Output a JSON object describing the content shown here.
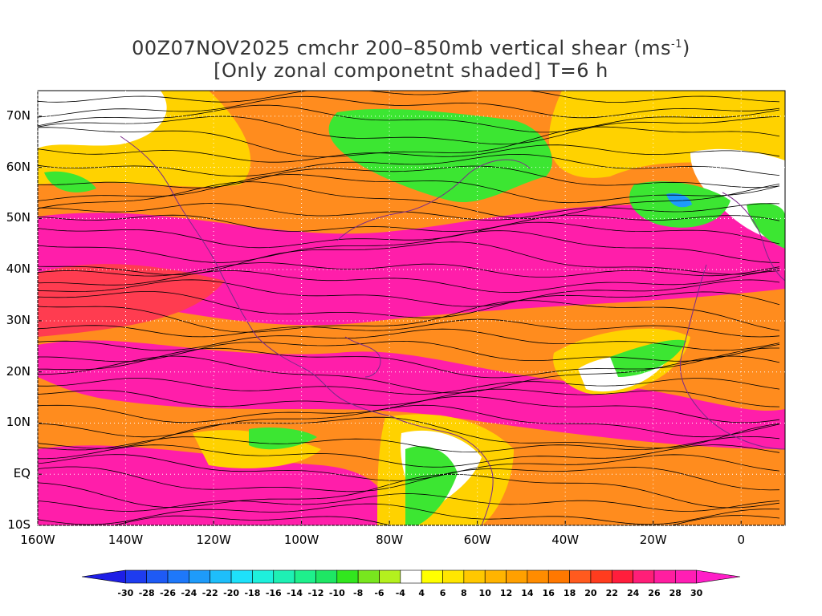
{
  "title": {
    "line1_prefix": "00Z07NOV2025 cmchr 200–850mb vertical shear (ms",
    "line1_sup": "-1",
    "line1_suffix": ")",
    "line2": "[Only zonal componetnt shaded] T=6 h"
  },
  "axes": {
    "x_ticks": [
      "160W",
      "140W",
      "120W",
      "100W",
      "80W",
      "60W",
      "40W",
      "20W",
      "0"
    ],
    "x_values": [
      -160,
      -140,
      -120,
      -100,
      -80,
      -60,
      -40,
      -20,
      0
    ],
    "y_ticks": [
      "70N",
      "60N",
      "50N",
      "40N",
      "30N",
      "20N",
      "10N",
      "EQ",
      "10S"
    ],
    "y_values": [
      70,
      60,
      50,
      40,
      30,
      20,
      10,
      0,
      -10
    ],
    "lon_range": [
      -160,
      10
    ],
    "lat_range": [
      -10,
      75
    ]
  },
  "colorbar": {
    "labels": [
      "-30",
      "-28",
      "-26",
      "-24",
      "-22",
      "-20",
      "-18",
      "-16",
      "-14",
      "-12",
      "-10",
      "-8",
      "-6",
      "-4",
      "4",
      "6",
      "8",
      "10",
      "12",
      "14",
      "16",
      "18",
      "20",
      "22",
      "24",
      "26",
      "28",
      "30"
    ],
    "colors": [
      "#1e1ee6",
      "#1e3cf0",
      "#1e5af5",
      "#1e78fa",
      "#1e9bfa",
      "#1ebefa",
      "#1ee1fa",
      "#1ef0dc",
      "#1ef0b4",
      "#1ef08c",
      "#1ee664",
      "#32e61e",
      "#78e61e",
      "#b4f01e",
      "#ffffff",
      "#ffff00",
      "#ffe600",
      "#ffc800",
      "#ffb400",
      "#ffa000",
      "#ff8c00",
      "#ff7800",
      "#ff5a1e",
      "#ff3c1e",
      "#ff1e3c",
      "#ff1e78",
      "#ff1ea0",
      "#ff1eb4",
      "#ff1ec8"
    ]
  },
  "map": {
    "colors": {
      "strong_positive": "#ff1eaa",
      "positive": "#ff3c50",
      "moderate": "#ff8c1e",
      "weak": "#ffd200",
      "neutral": "#ffffff",
      "negative": "#3ce632",
      "strong_negative": "#1e9bfa",
      "coast": "#7a2a8a",
      "streamline": "#000000"
    }
  }
}
